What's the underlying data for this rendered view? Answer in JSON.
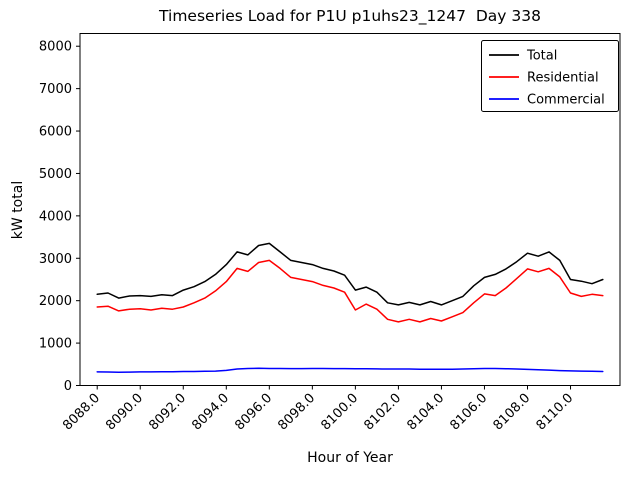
{
  "figure": {
    "background": "#ffffff",
    "frame_color": "#000000"
  },
  "chart_data": {
    "type": "line",
    "title": "Timeseries Load for P1U p1uhs23_1247  Day 338",
    "xlabel": "Hour of Year",
    "ylabel": "kW total",
    "xlim": [
      8087.2,
      8112.3
    ],
    "ylim": [
      0,
      8300
    ],
    "grid": false,
    "legend_position": "upper right",
    "yticks": [
      0,
      1000,
      2000,
      3000,
      4000,
      5000,
      6000,
      7000,
      8000
    ],
    "xticks": [
      8088,
      8090,
      8092,
      8094,
      8096,
      8098,
      8100,
      8102,
      8104,
      8106,
      8108,
      8110
    ],
    "xtick_labels": [
      "8088.0",
      "8090.0",
      "8092.0",
      "8094.0",
      "8096.0",
      "8098.0",
      "8100.0",
      "8102.0",
      "8104.0",
      "8106.0",
      "8108.0",
      "8110.0"
    ],
    "x": [
      8088.0,
      8088.5,
      8089.0,
      8089.5,
      8090.0,
      8090.5,
      8091.0,
      8091.5,
      8092.0,
      8092.5,
      8093.0,
      8093.5,
      8094.0,
      8094.5,
      8095.0,
      8095.5,
      8096.0,
      8096.5,
      8097.0,
      8097.5,
      8098.0,
      8098.5,
      8099.0,
      8099.5,
      8100.0,
      8100.5,
      8101.0,
      8101.5,
      8102.0,
      8102.5,
      8103.0,
      8103.5,
      8104.0,
      8104.5,
      8105.0,
      8105.5,
      8106.0,
      8106.5,
      8107.0,
      8107.5,
      8108.0,
      8108.5,
      8109.0,
      8109.5,
      8110.0,
      8110.5,
      8111.0,
      8111.5
    ],
    "series": [
      {
        "name": "Total",
        "color": "#000000",
        "values": [
          2150,
          2180,
          2060,
          2110,
          2120,
          2100,
          2140,
          2120,
          2250,
          2330,
          2450,
          2620,
          2850,
          3150,
          3080,
          3300,
          3350,
          3150,
          2950,
          2900,
          2850,
          2760,
          2700,
          2600,
          2250,
          2320,
          2200,
          1950,
          1900,
          1960,
          1900,
          1980,
          1900,
          2000,
          2100,
          2350,
          2550,
          2620,
          2750,
          2920,
          3120,
          3050,
          3150,
          2950,
          2500,
          2460,
          2400,
          2500
        ]
      },
      {
        "name": "Residential",
        "color": "#ff0000",
        "values": [
          1850,
          1870,
          1760,
          1800,
          1810,
          1780,
          1820,
          1800,
          1850,
          1950,
          2060,
          2230,
          2450,
          2760,
          2690,
          2900,
          2950,
          2760,
          2550,
          2500,
          2450,
          2360,
          2300,
          2200,
          1780,
          1920,
          1800,
          1560,
          1500,
          1560,
          1500,
          1580,
          1520,
          1620,
          1720,
          1950,
          2160,
          2120,
          2300,
          2520,
          2750,
          2680,
          2760,
          2560,
          2180,
          2100,
          2150,
          2120
        ]
      },
      {
        "name": "Commercial",
        "color": "#0000ff",
        "values": [
          320,
          318,
          312,
          315,
          320,
          320,
          325,
          325,
          330,
          330,
          335,
          340,
          355,
          390,
          400,
          405,
          400,
          400,
          398,
          398,
          400,
          400,
          398,
          398,
          395,
          395,
          392,
          390,
          390,
          388,
          385,
          385,
          382,
          385,
          390,
          395,
          400,
          400,
          395,
          390,
          380,
          372,
          362,
          352,
          345,
          340,
          335,
          330
        ]
      }
    ]
  }
}
